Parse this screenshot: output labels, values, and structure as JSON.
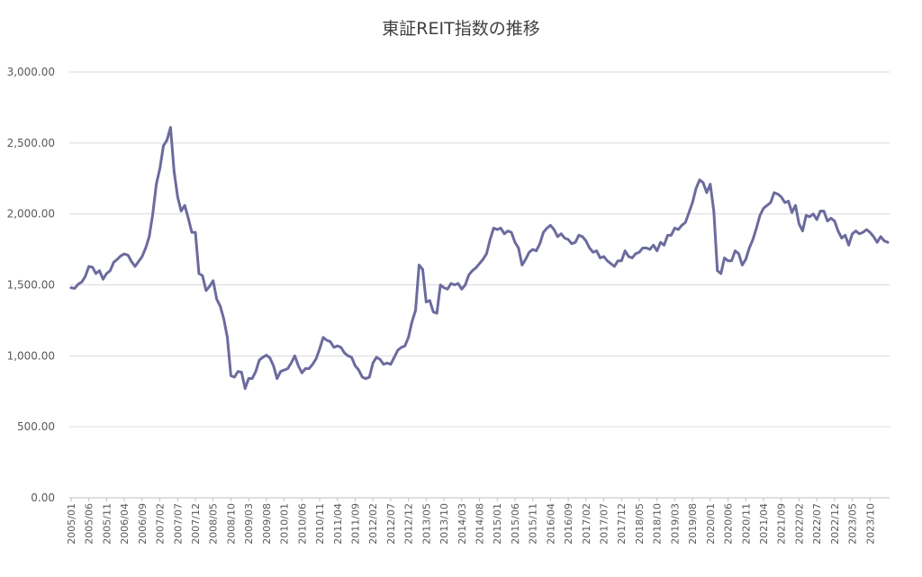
{
  "chart_data": {
    "type": "line",
    "title": "東証REIT指数の推移",
    "xlabel": "",
    "ylabel": "",
    "ylim": [
      0,
      3000
    ],
    "y_ticks": [
      "0.00",
      "500.00",
      "1,000.00",
      "1,500.00",
      "2,000.00",
      "2,500.00",
      "3,000.00"
    ],
    "y_tick_values": [
      0,
      500,
      1000,
      1500,
      2000,
      2500,
      3000
    ],
    "x_tick_labels": [
      "2005/01",
      "2005/06",
      "2005/11",
      "2006/04",
      "2006/09",
      "2007/02",
      "2007/07",
      "2007/12",
      "2008/05",
      "2008/10",
      "2009/03",
      "2009/08",
      "2010/01",
      "2010/06",
      "2010/11",
      "2011/04",
      "2011/09",
      "2012/02",
      "2012/07",
      "2012/12",
      "2013/05",
      "2013/10",
      "2014/03",
      "2014/08",
      "2015/01",
      "2015/06",
      "2015/11",
      "2016/04",
      "2016/09",
      "2017/02",
      "2017/07",
      "2017/12",
      "2018/05",
      "2018/10",
      "2019/03",
      "2019/08",
      "2020/01",
      "2020/06",
      "2020/11",
      "2021/04",
      "2021/09",
      "2022/02",
      "2022/07",
      "2022/12",
      "2023/05",
      "2023/10"
    ],
    "grid": true,
    "legend": "none",
    "color": "#6b6b9e",
    "series": [
      {
        "start": "2005/01",
        "values": [
          1480,
          1475,
          1505,
          1520,
          1560,
          1630,
          1625,
          1580,
          1600,
          1540,
          1580,
          1600,
          1660,
          1680,
          1705,
          1718,
          1710,
          1665,
          1630,
          1665,
          1700,
          1760,
          1840,
          2000,
          2210,
          2320,
          2480,
          2520,
          2610,
          2300,
          2120,
          2020,
          2060,
          1970,
          1870,
          1870,
          1580,
          1565,
          1460,
          1490,
          1530,
          1400,
          1350,
          1260,
          1130,
          860,
          850,
          890,
          885,
          770,
          840,
          840,
          890,
          970,
          990,
          1005,
          985,
          930,
          840,
          890,
          900,
          910,
          950,
          1000,
          930,
          880,
          910,
          910,
          940,
          980,
          1050,
          1130,
          1110,
          1100,
          1060,
          1070,
          1060,
          1020,
          1000,
          990,
          930,
          900,
          850,
          840,
          850,
          950,
          990,
          975,
          940,
          950,
          940,
          990,
          1040,
          1060,
          1070,
          1130,
          1240,
          1320,
          1640,
          1610,
          1380,
          1390,
          1310,
          1300,
          1500,
          1480,
          1470,
          1510,
          1500,
          1510,
          1470,
          1500,
          1570,
          1600,
          1620,
          1650,
          1680,
          1720,
          1820,
          1900,
          1890,
          1900,
          1860,
          1880,
          1870,
          1800,
          1760,
          1640,
          1680,
          1730,
          1750,
          1740,
          1790,
          1870,
          1900,
          1920,
          1890,
          1840,
          1860,
          1830,
          1820,
          1790,
          1800,
          1850,
          1840,
          1810,
          1760,
          1730,
          1740,
          1690,
          1700,
          1670,
          1650,
          1630,
          1670,
          1670,
          1740,
          1700,
          1690,
          1720,
          1730,
          1760,
          1760,
          1750,
          1780,
          1740,
          1800,
          1780,
          1850,
          1850,
          1900,
          1890,
          1920,
          1940,
          2010,
          2080,
          2180,
          2240,
          2220,
          2150,
          2210,
          2020,
          1600,
          1580,
          1690,
          1670,
          1670,
          1740,
          1720,
          1640,
          1680,
          1760,
          1820,
          1900,
          1990,
          2040,
          2060,
          2080,
          2150,
          2140,
          2120,
          2080,
          2090,
          2010,
          2060,
          1930,
          1880,
          1990,
          1980,
          2000,
          1960,
          2020,
          2020,
          1950,
          1970,
          1950,
          1880,
          1830,
          1850,
          1780,
          1860,
          1880,
          1860,
          1870,
          1890,
          1870,
          1840,
          1800,
          1840,
          1810,
          1800
        ]
      }
    ]
  }
}
